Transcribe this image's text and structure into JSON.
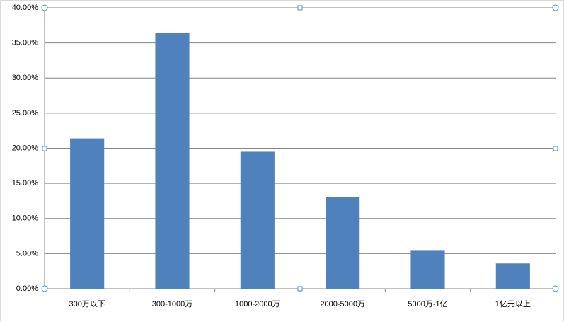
{
  "chart_data": {
    "type": "bar",
    "categories": [
      "300万以下",
      "300-1000万",
      "1000-2000万",
      "2000-5000万",
      "5000万-1亿",
      "1亿元以上"
    ],
    "values": [
      21.4,
      36.4,
      19.5,
      13.0,
      5.5,
      3.6
    ],
    "color": "#4f81bd",
    "ylim": [
      0,
      40
    ],
    "yticks": [
      {
        "value": 0,
        "label": "0.00%"
      },
      {
        "value": 5,
        "label": "5.00%"
      },
      {
        "value": 10,
        "label": "10.00%"
      },
      {
        "value": 15,
        "label": "15.00%"
      },
      {
        "value": 20,
        "label": "20.00%"
      },
      {
        "value": 25,
        "label": "25.00%"
      },
      {
        "value": 30,
        "label": "30.00%"
      },
      {
        "value": 35,
        "label": "35.00%"
      },
      {
        "value": 40,
        "label": "40.00%"
      }
    ],
    "grid": true
  }
}
